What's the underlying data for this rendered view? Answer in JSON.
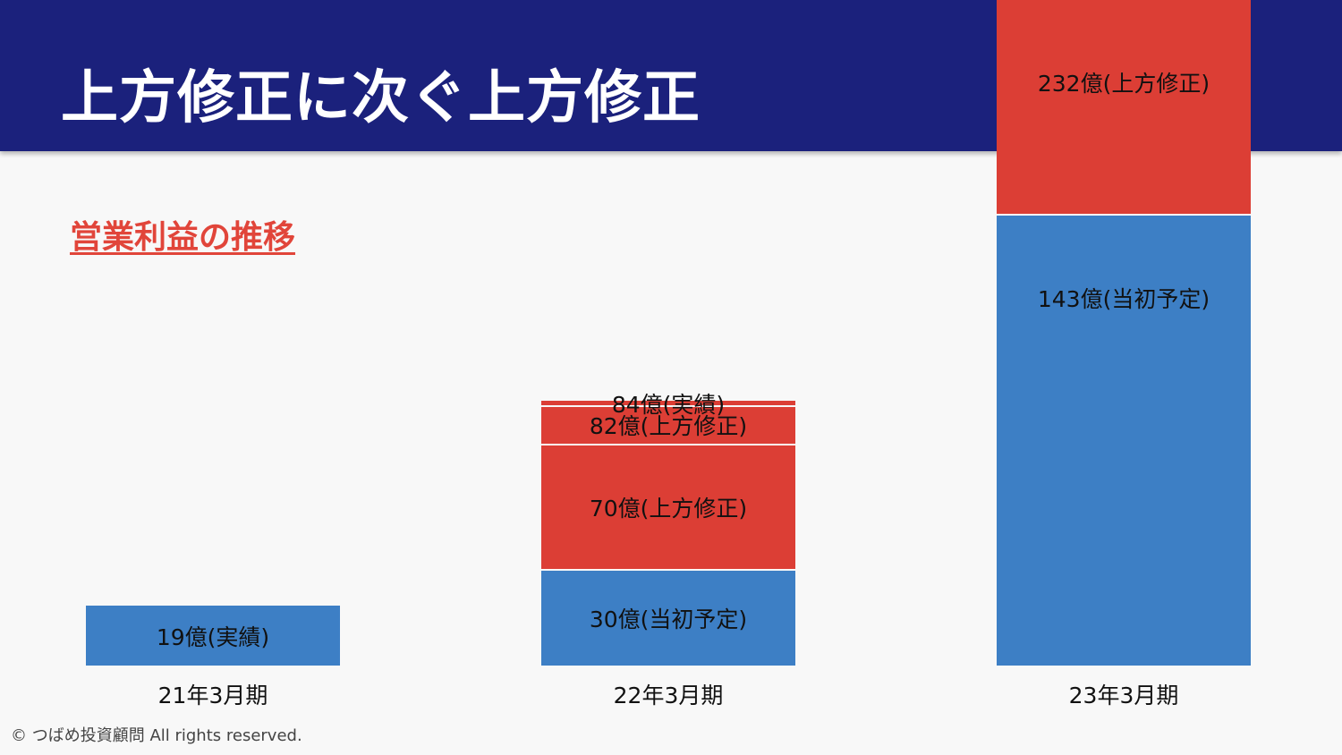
{
  "title": "上方修正に次ぐ上方修正",
  "subtitle": "営業利益の推移",
  "copyright": "© つばめ投資顧問 All rights reserved.",
  "colors": {
    "header": "#1b217c",
    "actual_initial": "#3d7fc5",
    "revision": "#dc3e35",
    "subtitle": "#e1453a"
  },
  "chart_data": {
    "type": "bar",
    "stacked": true,
    "categories": [
      "21年3月期",
      "22年3月期",
      "23年3月期"
    ],
    "bars": [
      {
        "category": "21年3月期",
        "segments": [
          {
            "value": 19,
            "label": "19億(実績)",
            "color": "#3d7fc5"
          }
        ]
      },
      {
        "category": "22年3月期",
        "segments": [
          {
            "value": 30,
            "label": "30億(当初予定)",
            "color": "#3d7fc5"
          },
          {
            "value": 70,
            "label": "70億(上方修正)",
            "color": "#dc3e35"
          },
          {
            "value": 82,
            "label": "82億(上方修正)",
            "color": "#dc3e35"
          },
          {
            "value": 84,
            "label": "84億(実績)",
            "color": "#dc3e35"
          }
        ]
      },
      {
        "category": "23年3月期",
        "segments": [
          {
            "value": 143,
            "label": "143億(当初予定)",
            "color": "#3d7fc5"
          },
          {
            "value": 232,
            "label": "232億(上方修正)",
            "color": "#dc3e35"
          }
        ]
      }
    ],
    "legend": "none",
    "grid": false
  }
}
